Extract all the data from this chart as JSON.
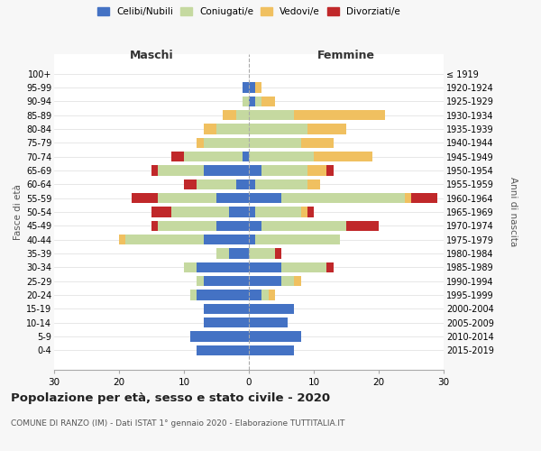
{
  "age_groups": [
    "0-4",
    "5-9",
    "10-14",
    "15-19",
    "20-24",
    "25-29",
    "30-34",
    "35-39",
    "40-44",
    "45-49",
    "50-54",
    "55-59",
    "60-64",
    "65-69",
    "70-74",
    "75-79",
    "80-84",
    "85-89",
    "90-94",
    "95-99",
    "100+"
  ],
  "birth_years": [
    "2015-2019",
    "2010-2014",
    "2005-2009",
    "2000-2004",
    "1995-1999",
    "1990-1994",
    "1985-1989",
    "1980-1984",
    "1975-1979",
    "1970-1974",
    "1965-1969",
    "1960-1964",
    "1955-1959",
    "1950-1954",
    "1945-1949",
    "1940-1944",
    "1935-1939",
    "1930-1934",
    "1925-1929",
    "1920-1924",
    "≤ 1919"
  ],
  "colors": {
    "celibe": "#4472c4",
    "coniugato": "#c5d9a0",
    "vedovo": "#f0c060",
    "divorziato": "#c0282a"
  },
  "maschi": {
    "celibe": [
      8,
      9,
      7,
      7,
      8,
      7,
      8,
      3,
      7,
      5,
      3,
      5,
      2,
      7,
      1,
      0,
      0,
      0,
      0,
      1,
      0
    ],
    "coniugato": [
      0,
      0,
      0,
      0,
      1,
      1,
      2,
      2,
      12,
      9,
      9,
      9,
      6,
      7,
      9,
      7,
      5,
      2,
      1,
      0,
      0
    ],
    "vedovo": [
      0,
      0,
      0,
      0,
      0,
      0,
      0,
      0,
      1,
      0,
      0,
      0,
      0,
      0,
      0,
      1,
      2,
      2,
      0,
      0,
      0
    ],
    "divorziato": [
      0,
      0,
      0,
      0,
      0,
      0,
      0,
      0,
      0,
      1,
      3,
      4,
      2,
      1,
      2,
      0,
      0,
      0,
      0,
      0,
      0
    ]
  },
  "femmine": {
    "celibe": [
      7,
      8,
      6,
      7,
      2,
      5,
      5,
      0,
      1,
      2,
      1,
      5,
      1,
      2,
      0,
      0,
      0,
      0,
      1,
      1,
      0
    ],
    "coniugato": [
      0,
      0,
      0,
      0,
      1,
      2,
      7,
      4,
      13,
      13,
      7,
      19,
      8,
      7,
      10,
      8,
      9,
      7,
      1,
      0,
      0
    ],
    "vedovo": [
      0,
      0,
      0,
      0,
      1,
      1,
      0,
      0,
      0,
      0,
      1,
      1,
      2,
      3,
      9,
      5,
      6,
      14,
      2,
      1,
      0
    ],
    "divorziato": [
      0,
      0,
      0,
      0,
      0,
      0,
      1,
      1,
      0,
      5,
      1,
      4,
      0,
      1,
      0,
      0,
      0,
      0,
      0,
      0,
      0
    ]
  },
  "title": "Popolazione per età, sesso e stato civile - 2020",
  "subtitle": "COMUNE DI RANZO (IM) - Dati ISTAT 1° gennaio 2020 - Elaborazione TUTTITALIA.IT",
  "xlabel_left": "Maschi",
  "xlabel_right": "Femmine",
  "ylabel_left": "Fasce di età",
  "ylabel_right": "Anni di nascita",
  "xlim": 30,
  "legend_labels": [
    "Celibi/Nubili",
    "Coniugati/e",
    "Vedovi/e",
    "Divorziati/e"
  ],
  "bg_color": "#f7f7f7",
  "plot_bg_color": "#ffffff",
  "femmine_color": "#333333"
}
